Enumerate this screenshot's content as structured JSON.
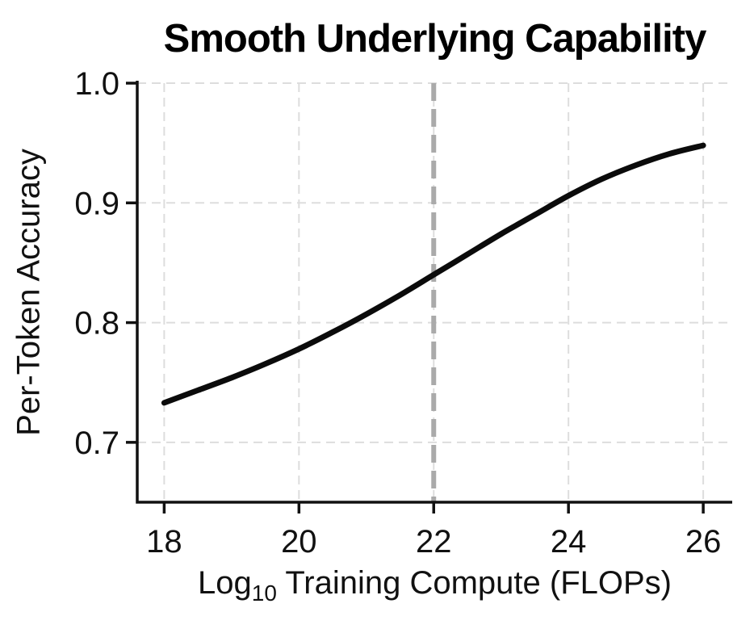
{
  "chart_data": {
    "type": "line",
    "title": "Smooth Underlying Capability",
    "xlabel": "Log10 Training Compute (FLOPs)",
    "xlabel_parts": {
      "prefix": "Log",
      "subscript": "10",
      "rest": " Training Compute (FLOPs)"
    },
    "ylabel": "Per-Token Accuracy",
    "xlim": [
      17.6,
      26.43
    ],
    "ylim": [
      0.65,
      1.0
    ],
    "x_ticks": [
      18,
      20,
      22,
      24,
      26
    ],
    "x_tick_labels": [
      "18",
      "20",
      "22",
      "24",
      "26"
    ],
    "y_ticks": [
      0.7,
      0.8,
      0.9,
      1.0
    ],
    "y_tick_labels": [
      "0.7",
      "0.8",
      "0.9",
      "1.0"
    ],
    "grid": true,
    "grid_style": "dashed",
    "legend": "none",
    "series": [
      {
        "name": "per-token accuracy vs training compute",
        "color": "#0b0b0b",
        "line_width": 7,
        "x": [
          18,
          18.5,
          19,
          19.5,
          20,
          20.5,
          21,
          21.5,
          22,
          22.5,
          23,
          23.5,
          24,
          24.5,
          25,
          25.5,
          26
        ],
        "y": [
          0.733,
          0.7435,
          0.754,
          0.7655,
          0.778,
          0.792,
          0.807,
          0.823,
          0.84,
          0.857,
          0.874,
          0.89,
          0.906,
          0.92,
          0.9315,
          0.941,
          0.948
        ]
      }
    ],
    "reference_line": {
      "axis": "x",
      "value": 22,
      "color": "#aaaaaa",
      "style": "dashed",
      "width": 6
    },
    "colors": {
      "gridline": "#dddddd",
      "spine": "#111111",
      "tick": "#111111",
      "text": "#111111",
      "title": "#000000",
      "background": "#ffffff"
    }
  }
}
